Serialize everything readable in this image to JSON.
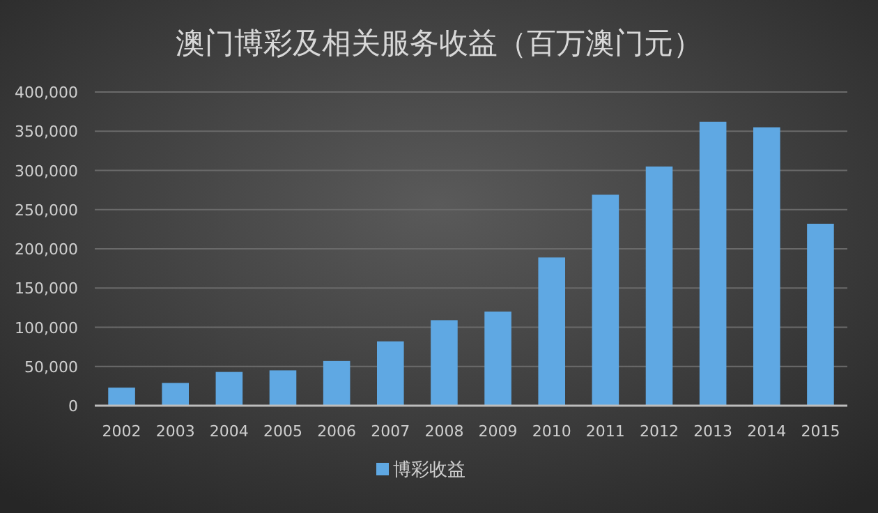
{
  "chart_data": {
    "type": "bar",
    "title": "澳门博彩及相关服务收益（百万澳门元）",
    "categories": [
      "2002",
      "2003",
      "2004",
      "2005",
      "2006",
      "2007",
      "2008",
      "2009",
      "2010",
      "2011",
      "2012",
      "2013",
      "2014",
      "2015"
    ],
    "series": [
      {
        "name": "博彩收益",
        "color": "#5fa8e3",
        "values": [
          23000,
          29000,
          43000,
          45000,
          57000,
          82000,
          109000,
          120000,
          189000,
          269000,
          305000,
          362000,
          355000,
          232000
        ]
      }
    ],
    "ylim": [
      0,
      400000
    ],
    "yticks": [
      {
        "value": 0,
        "label": "0"
      },
      {
        "value": 50000,
        "label": "50,000"
      },
      {
        "value": 100000,
        "label": "100,000"
      },
      {
        "value": 150000,
        "label": "150,000"
      },
      {
        "value": 200000,
        "label": "200,000"
      },
      {
        "value": 250000,
        "label": "250,000"
      },
      {
        "value": 300000,
        "label": "300,000"
      },
      {
        "value": 350000,
        "label": "350,000"
      },
      {
        "value": 400000,
        "label": "400,000"
      }
    ],
    "grid": "y",
    "legend": "bottom"
  }
}
